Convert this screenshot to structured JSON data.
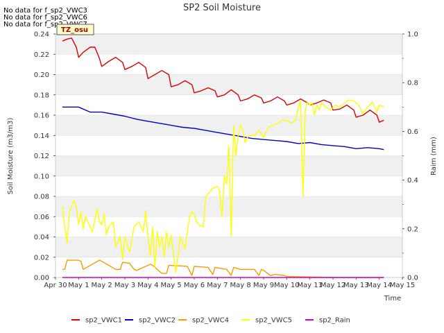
{
  "chart_data": {
    "type": "line",
    "title": "SP2 Soil Moisture",
    "xlabel": "Time",
    "ylabel": "Soil Moisture (m3/m3)",
    "y2label": "Raim (mm)",
    "notices": [
      "No data for f_sp2_VWC3",
      "No data for f_sp2_VWC6",
      "No data for f_sp2_VWC7"
    ],
    "badge": "TZ_osu",
    "x_ticks": [
      "Apr 30",
      "May 1",
      "May 2",
      "May 3",
      "May 4",
      "May 5",
      "May 6",
      "May 7",
      "May 8",
      "May 9",
      "May 10",
      "May 11",
      "May 12",
      "May 13",
      "May 14",
      "May 15"
    ],
    "xlim": [
      0,
      15
    ],
    "ylim": [
      0,
      0.24
    ],
    "y_ticks": [
      "0.00",
      "0.02",
      "0.04",
      "0.06",
      "0.08",
      "0.10",
      "0.12",
      "0.14",
      "0.16",
      "0.18",
      "0.20",
      "0.22",
      "0.24"
    ],
    "y2lim": [
      0,
      1.0
    ],
    "y2_ticks": [
      "0.0",
      "0.2",
      "0.4",
      "0.6",
      "0.8",
      "1.0"
    ],
    "x_unit_note": "x in days after Apr 30",
    "legend_position": "bottom",
    "series": [
      {
        "name": "sp2_VWC1",
        "color": "#dd0000",
        "x": [
          0.3,
          0.5,
          0.7,
          0.9,
          1.0,
          1.2,
          1.5,
          1.7,
          1.9,
          2.0,
          2.3,
          2.6,
          2.9,
          3.0,
          3.3,
          3.6,
          3.9,
          4.0,
          4.3,
          4.6,
          4.9,
          5.0,
          5.3,
          5.6,
          5.9,
          6.0,
          6.3,
          6.6,
          6.9,
          7.0,
          7.3,
          7.6,
          7.9,
          8.0,
          8.3,
          8.6,
          8.9,
          9.0,
          9.3,
          9.6,
          9.9,
          10.0,
          10.3,
          10.6,
          10.9,
          11.0,
          11.3,
          11.6,
          11.9,
          12.0,
          12.3,
          12.6,
          12.9,
          13.0,
          13.3,
          13.6,
          13.9,
          14.0,
          14.2
        ],
        "values": [
          0.233,
          0.235,
          0.236,
          0.227,
          0.217,
          0.222,
          0.227,
          0.227,
          0.216,
          0.208,
          0.213,
          0.217,
          0.212,
          0.205,
          0.208,
          0.212,
          0.207,
          0.196,
          0.2,
          0.204,
          0.2,
          0.188,
          0.19,
          0.194,
          0.19,
          0.182,
          0.184,
          0.187,
          0.184,
          0.178,
          0.18,
          0.185,
          0.18,
          0.174,
          0.176,
          0.18,
          0.177,
          0.172,
          0.174,
          0.178,
          0.174,
          0.17,
          0.172,
          0.176,
          0.172,
          0.17,
          0.172,
          0.175,
          0.172,
          0.165,
          0.166,
          0.17,
          0.165,
          0.158,
          0.16,
          0.165,
          0.16,
          0.153,
          0.155
        ]
      },
      {
        "name": "sp2_VWC2",
        "color": "#0000cc",
        "x": [
          0.3,
          1.0,
          1.5,
          2.0,
          2.5,
          3.0,
          3.5,
          4.0,
          4.5,
          5.0,
          5.5,
          6.0,
          6.5,
          7.0,
          7.5,
          8.0,
          8.5,
          9.0,
          9.5,
          10.0,
          10.5,
          11.0,
          11.5,
          12.0,
          12.5,
          13.0,
          13.5,
          14.0,
          14.2
        ],
        "values": [
          0.168,
          0.168,
          0.163,
          0.163,
          0.161,
          0.159,
          0.156,
          0.154,
          0.152,
          0.15,
          0.148,
          0.147,
          0.145,
          0.143,
          0.141,
          0.139,
          0.137,
          0.136,
          0.135,
          0.134,
          0.132,
          0.133,
          0.131,
          0.13,
          0.129,
          0.127,
          0.128,
          0.127,
          0.126
        ]
      },
      {
        "name": "sp2_VWC4",
        "color": "#ff9900",
        "x": [
          0.3,
          0.4,
          0.5,
          1.0,
          1.1,
          1.2,
          1.9,
          2.0,
          2.6,
          2.8,
          2.9,
          3.2,
          3.4,
          3.5,
          4.1,
          4.2,
          4.6,
          4.8,
          4.9,
          5.7,
          5.9,
          6.0,
          6.6,
          6.8,
          6.9,
          7.4,
          7.6,
          7.7,
          8.0,
          8.6,
          8.8,
          8.9,
          9.0,
          9.3,
          9.5,
          9.9,
          10.0,
          12.0,
          14.2
        ],
        "values": [
          0.008,
          0.008,
          0.017,
          0.017,
          0.016,
          0.008,
          0.017,
          0.016,
          0.008,
          0.008,
          0.015,
          0.014,
          0.008,
          0.007,
          0.013,
          0.012,
          0.004,
          0.004,
          0.012,
          0.011,
          0.002,
          0.011,
          0.01,
          0.003,
          0.01,
          0.008,
          0.002,
          0.01,
          0.008,
          0.008,
          0.002,
          0.008,
          0.007,
          0.002,
          0.003,
          0.002,
          0.001,
          0.0,
          0.0
        ]
      },
      {
        "name": "sp2_VWC5",
        "color": "#ffff00",
        "x": [
          0.3,
          0.4,
          0.5,
          0.6,
          0.8,
          0.9,
          1.0,
          1.1,
          1.2,
          1.3,
          1.5,
          1.6,
          1.8,
          1.9,
          2.0,
          2.1,
          2.2,
          2.3,
          2.5,
          2.6,
          2.8,
          2.9,
          3.0,
          3.2,
          3.4,
          3.6,
          3.8,
          3.9,
          4.0,
          4.1,
          4.2,
          4.3,
          4.4,
          4.5,
          4.6,
          4.7,
          4.8,
          4.9,
          5.0,
          5.2,
          5.4,
          5.6,
          5.8,
          5.9,
          6.0,
          6.1,
          6.2,
          6.4,
          6.5,
          6.7,
          6.8,
          7.0,
          7.1,
          7.2,
          7.3,
          7.4,
          7.5,
          7.6,
          7.7,
          7.8,
          7.9,
          8.0,
          8.1,
          8.2,
          8.3,
          8.4,
          8.6,
          8.8,
          9.0,
          9.2,
          9.4,
          9.6,
          9.8,
          10.0,
          10.2,
          10.4,
          10.5,
          10.6,
          10.7,
          10.8,
          10.9,
          11.0,
          11.1,
          11.2,
          11.3,
          11.4,
          11.5,
          11.7,
          11.9,
          12.1,
          12.3,
          12.5,
          12.7,
          12.9,
          13.1,
          13.3,
          13.5,
          13.7,
          13.9,
          14.0,
          14.2
        ],
        "values": [
          0.07,
          0.05,
          0.034,
          0.065,
          0.076,
          0.07,
          0.052,
          0.065,
          0.048,
          0.06,
          0.05,
          0.045,
          0.068,
          0.055,
          0.052,
          0.063,
          0.042,
          0.05,
          0.055,
          0.03,
          0.04,
          0.018,
          0.04,
          0.025,
          0.05,
          0.055,
          0.045,
          0.066,
          0.04,
          0.022,
          0.05,
          0.01,
          0.045,
          0.03,
          0.04,
          0.02,
          0.045,
          0.03,
          0.042,
          0.005,
          0.04,
          0.028,
          0.06,
          0.065,
          0.062,
          0.055,
          0.052,
          0.05,
          0.08,
          0.085,
          0.088,
          0.09,
          0.085,
          0.06,
          0.1,
          0.092,
          0.13,
          0.04,
          0.15,
          0.12,
          0.14,
          0.15,
          0.145,
          0.133,
          0.138,
          0.14,
          0.14,
          0.145,
          0.138,
          0.148,
          0.15,
          0.152,
          0.155,
          0.155,
          0.152,
          0.156,
          0.168,
          0.174,
          0.08,
          0.165,
          0.173,
          0.17,
          0.172,
          0.16,
          0.17,
          0.165,
          0.172,
          0.168,
          0.165,
          0.17,
          0.168,
          0.172,
          0.175,
          0.174,
          0.17,
          0.162,
          0.168,
          0.173,
          0.163,
          0.17,
          0.168
        ]
      },
      {
        "name": "sp2_Rain",
        "color": "#cc00cc",
        "x": [
          0.3,
          14.2
        ],
        "values": [
          0.0,
          0.0
        ],
        "axis": "right"
      }
    ]
  }
}
